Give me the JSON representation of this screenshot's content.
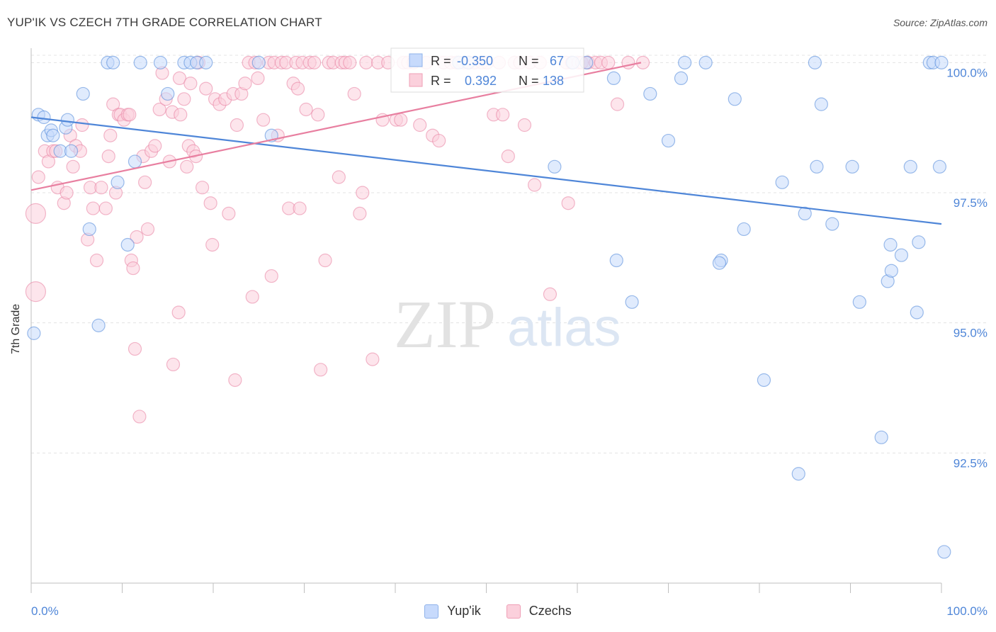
{
  "header": {
    "title": "YUP'IK VS CZECH 7TH GRADE CORRELATION CHART",
    "source": "Source: ZipAtlas.com"
  },
  "watermark": {
    "zip": "ZIP",
    "atlas": "atlas"
  },
  "legend_bottom": [
    {
      "label": "Yup'ik",
      "color": "#4f86d8"
    },
    {
      "label": "Czechs",
      "color": "#e87fa0"
    }
  ],
  "stats_box": {
    "rows": [
      {
        "r_label": "R =",
        "r_value": "-0.350",
        "n_label": "N =",
        "n_value": "67",
        "color": "#4f86d8"
      },
      {
        "r_label": "R =",
        "r_value": "0.392",
        "n_label": "N =",
        "n_value": "138",
        "color": "#e87fa0"
      }
    ]
  },
  "chart_data": {
    "type": "scatter",
    "ylabel": "7th Grade",
    "x_ticks": [
      "0.0%",
      "100.0%"
    ],
    "y_ticks": [
      {
        "value": 100.0,
        "label": "100.0%"
      },
      {
        "value": 97.5,
        "label": "97.5%"
      },
      {
        "value": 95.0,
        "label": "95.0%"
      },
      {
        "value": 92.5,
        "label": "92.5%"
      }
    ],
    "xlim": [
      0,
      100
    ],
    "ylim": [
      90.0,
      100.25
    ],
    "grid": true,
    "series": [
      {
        "name": "Yup'ik",
        "color": "#4f86d8",
        "fill": "#c7dafc",
        "trend": {
          "x": [
            0,
            100
          ],
          "y": [
            98.95,
            96.9
          ]
        },
        "points": [
          [
            0.3,
            94.8
          ],
          [
            0.8,
            99.0
          ],
          [
            1.4,
            98.95
          ],
          [
            1.8,
            98.6
          ],
          [
            2.2,
            98.7
          ],
          [
            2.4,
            98.6
          ],
          [
            3.2,
            98.3
          ],
          [
            3.8,
            98.75
          ],
          [
            4.0,
            98.9
          ],
          [
            4.4,
            98.3
          ],
          [
            5.7,
            99.4
          ],
          [
            6.4,
            96.8
          ],
          [
            7.4,
            94.95
          ],
          [
            8.4,
            100.0
          ],
          [
            9.0,
            100.0
          ],
          [
            9.5,
            97.7
          ],
          [
            10.6,
            96.5
          ],
          [
            11.4,
            98.1
          ],
          [
            12.0,
            100.0
          ],
          [
            14.2,
            100.0
          ],
          [
            15.0,
            99.4
          ],
          [
            16.8,
            100.0
          ],
          [
            17.5,
            100.0
          ],
          [
            18.2,
            100.0
          ],
          [
            19.2,
            100.0
          ],
          [
            25.0,
            100.0
          ],
          [
            26.4,
            98.6
          ],
          [
            47.0,
            100.0
          ],
          [
            48.0,
            100.0
          ],
          [
            57.5,
            98.0
          ],
          [
            59.5,
            100.0
          ],
          [
            61.0,
            100.0
          ],
          [
            64.0,
            99.7
          ],
          [
            64.3,
            96.2
          ],
          [
            66.0,
            95.4
          ],
          [
            68.0,
            99.4
          ],
          [
            70.0,
            98.5
          ],
          [
            71.4,
            99.7
          ],
          [
            71.8,
            100.0
          ],
          [
            74.1,
            100.0
          ],
          [
            75.8,
            96.2
          ],
          [
            75.6,
            96.15
          ],
          [
            77.3,
            99.3
          ],
          [
            78.3,
            96.8
          ],
          [
            80.5,
            93.9
          ],
          [
            82.5,
            97.7
          ],
          [
            84.3,
            92.1
          ],
          [
            85.0,
            97.1
          ],
          [
            86.1,
            100.0
          ],
          [
            86.3,
            98.0
          ],
          [
            86.8,
            99.2
          ],
          [
            88.0,
            96.9
          ],
          [
            90.2,
            98.0
          ],
          [
            91.0,
            95.4
          ],
          [
            93.4,
            92.8
          ],
          [
            94.1,
            95.8
          ],
          [
            94.4,
            96.5
          ],
          [
            94.5,
            96.0
          ],
          [
            95.6,
            96.3
          ],
          [
            96.6,
            98.0
          ],
          [
            97.3,
            95.2
          ],
          [
            97.5,
            96.55
          ],
          [
            98.7,
            100.0
          ],
          [
            99.1,
            100.0
          ],
          [
            99.8,
            98.0
          ],
          [
            100.0,
            100.0
          ],
          [
            100.3,
            90.6
          ]
        ]
      },
      {
        "name": "Czechs",
        "color": "#e87fa0",
        "fill": "#fbd0dc",
        "trend": {
          "x": [
            0,
            67
          ],
          "y": [
            97.55,
            100.0
          ]
        },
        "points": [
          [
            0.5,
            97.1
          ],
          [
            0.5,
            95.6
          ],
          [
            0.8,
            97.8
          ],
          [
            1.5,
            98.3
          ],
          [
            1.9,
            98.1
          ],
          [
            2.4,
            98.3
          ],
          [
            2.7,
            98.3
          ],
          [
            2.9,
            97.6
          ],
          [
            3.6,
            97.3
          ],
          [
            3.9,
            97.5
          ],
          [
            4.3,
            98.6
          ],
          [
            4.6,
            98.0
          ],
          [
            4.9,
            98.4
          ],
          [
            5.4,
            98.3
          ],
          [
            5.6,
            98.8
          ],
          [
            6.2,
            96.6
          ],
          [
            6.5,
            97.6
          ],
          [
            6.8,
            97.2
          ],
          [
            7.2,
            96.2
          ],
          [
            7.7,
            97.6
          ],
          [
            8.2,
            97.2
          ],
          [
            8.5,
            98.2
          ],
          [
            8.7,
            98.6
          ],
          [
            9.0,
            99.2
          ],
          [
            9.3,
            97.5
          ],
          [
            9.6,
            99.0
          ],
          [
            9.8,
            99.0
          ],
          [
            10.2,
            98.9
          ],
          [
            10.6,
            99.0
          ],
          [
            10.8,
            99.0
          ],
          [
            11.0,
            96.2
          ],
          [
            11.2,
            96.05
          ],
          [
            11.4,
            94.5
          ],
          [
            11.6,
            96.65
          ],
          [
            11.9,
            93.2
          ],
          [
            12.3,
            98.2
          ],
          [
            12.5,
            97.7
          ],
          [
            12.8,
            96.8
          ],
          [
            13.2,
            98.3
          ],
          [
            13.6,
            98.4
          ],
          [
            14.1,
            99.1
          ],
          [
            14.4,
            99.8
          ],
          [
            14.8,
            99.3
          ],
          [
            15.2,
            98.1
          ],
          [
            15.5,
            99.05
          ],
          [
            15.6,
            94.2
          ],
          [
            16.2,
            95.2
          ],
          [
            16.3,
            99.7
          ],
          [
            16.4,
            99.0
          ],
          [
            16.8,
            99.3
          ],
          [
            17.1,
            98.0
          ],
          [
            17.3,
            98.4
          ],
          [
            17.5,
            99.6
          ],
          [
            17.8,
            98.3
          ],
          [
            18.1,
            98.2
          ],
          [
            18.4,
            100.0
          ],
          [
            18.8,
            97.6
          ],
          [
            19.2,
            99.5
          ],
          [
            19.7,
            97.3
          ],
          [
            19.9,
            96.5
          ],
          [
            20.2,
            99.3
          ],
          [
            20.7,
            99.2
          ],
          [
            21.3,
            99.3
          ],
          [
            21.7,
            97.1
          ],
          [
            22.2,
            99.4
          ],
          [
            22.4,
            93.9
          ],
          [
            22.6,
            98.8
          ],
          [
            23.1,
            99.4
          ],
          [
            23.5,
            99.6
          ],
          [
            23.9,
            100.0
          ],
          [
            24.3,
            95.5
          ],
          [
            24.6,
            100.0
          ],
          [
            24.9,
            99.7
          ],
          [
            25.5,
            98.9
          ],
          [
            26.1,
            100.0
          ],
          [
            26.4,
            95.9
          ],
          [
            26.7,
            100.0
          ],
          [
            27.1,
            98.6
          ],
          [
            27.5,
            100.0
          ],
          [
            28.0,
            100.0
          ],
          [
            28.3,
            97.2
          ],
          [
            28.8,
            99.6
          ],
          [
            29.1,
            100.0
          ],
          [
            29.3,
            99.5
          ],
          [
            29.5,
            97.2
          ],
          [
            29.8,
            100.0
          ],
          [
            30.2,
            99.1
          ],
          [
            30.6,
            100.0
          ],
          [
            31.1,
            100.0
          ],
          [
            31.5,
            99.0
          ],
          [
            31.8,
            94.1
          ],
          [
            32.3,
            96.2
          ],
          [
            32.7,
            100.0
          ],
          [
            33.2,
            100.0
          ],
          [
            33.8,
            97.8
          ],
          [
            34.1,
            100.0
          ],
          [
            34.5,
            100.0
          ],
          [
            35.0,
            100.0
          ],
          [
            35.5,
            99.4
          ],
          [
            36.1,
            97.1
          ],
          [
            36.4,
            97.5
          ],
          [
            36.8,
            100.0
          ],
          [
            37.5,
            94.3
          ],
          [
            38.1,
            100.0
          ],
          [
            38.6,
            98.9
          ],
          [
            39.2,
            100.0
          ],
          [
            40.1,
            98.9
          ],
          [
            40.6,
            98.9
          ],
          [
            40.9,
            100.0
          ],
          [
            41.4,
            100.0
          ],
          [
            42.0,
            100.0
          ],
          [
            42.7,
            98.8
          ],
          [
            43.4,
            100.0
          ],
          [
            44.1,
            98.6
          ],
          [
            44.8,
            98.5
          ],
          [
            45.3,
            100.0
          ],
          [
            46.1,
            100.0
          ],
          [
            46.7,
            100.0
          ],
          [
            47.5,
            100.0
          ],
          [
            48.1,
            100.0
          ],
          [
            48.7,
            100.0
          ],
          [
            49.5,
            100.0
          ],
          [
            50.1,
            100.0
          ],
          [
            50.8,
            99.0
          ],
          [
            51.4,
            100.0
          ],
          [
            51.8,
            99.0
          ],
          [
            52.4,
            98.2
          ],
          [
            53.1,
            100.0
          ],
          [
            53.7,
            100.0
          ],
          [
            54.2,
            98.8
          ],
          [
            54.8,
            100.0
          ],
          [
            55.3,
            97.65
          ],
          [
            55.9,
            100.0
          ],
          [
            57.0,
            95.55
          ],
          [
            58.8,
            100.0
          ],
          [
            59.0,
            97.3
          ],
          [
            59.4,
            100.0
          ],
          [
            60.1,
            100.0
          ],
          [
            60.5,
            100.0
          ],
          [
            61.2,
            100.0
          ],
          [
            62.0,
            100.0
          ],
          [
            62.6,
            100.0
          ],
          [
            63.4,
            100.0
          ],
          [
            64.4,
            99.2
          ],
          [
            65.6,
            100.0
          ],
          [
            67.2,
            100.0
          ]
        ]
      }
    ]
  }
}
